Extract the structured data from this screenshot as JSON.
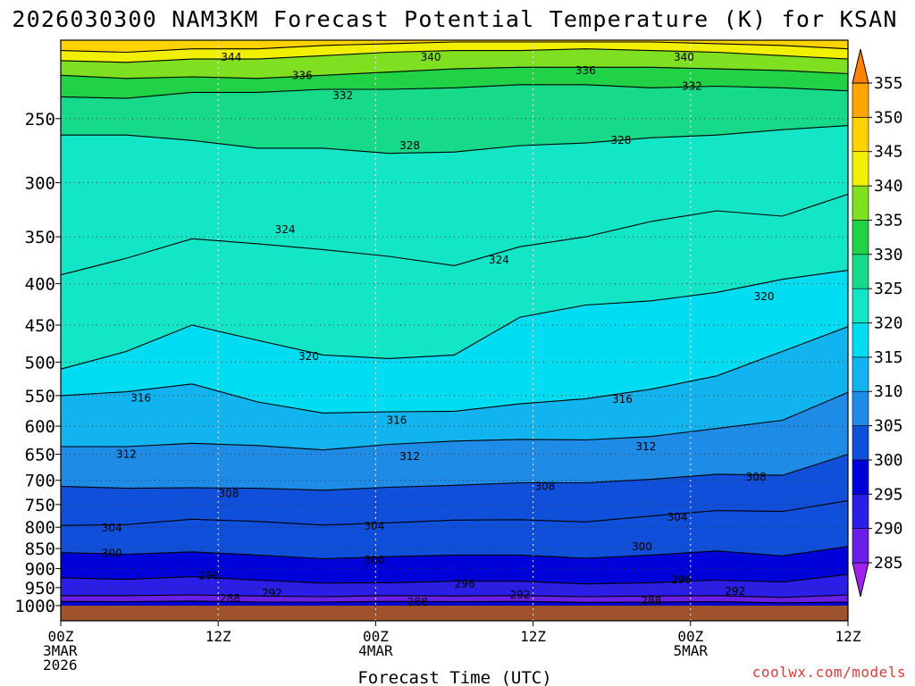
{
  "chart_data": {
    "type": "heatmap",
    "title": "2026030300 NAM3KM Forecast Potential Temperature (K) for KSAN",
    "xlabel": "Forecast Time (UTC)",
    "ylabel": "",
    "watermark": "coolwx.com/models",
    "x_ticks": [
      {
        "hour": 0,
        "lines": [
          "00Z",
          "3MAR",
          "2026"
        ]
      },
      {
        "hour": 12,
        "lines": [
          "12Z"
        ]
      },
      {
        "hour": 24,
        "lines": [
          "00Z",
          "4MAR"
        ]
      },
      {
        "hour": 36,
        "lines": [
          "12Z"
        ]
      },
      {
        "hour": 48,
        "lines": [
          "00Z",
          "5MAR"
        ]
      },
      {
        "hour": 60,
        "lines": [
          "12Z"
        ]
      }
    ],
    "xlim": [
      0,
      60
    ],
    "y_ticks": [
      250,
      300,
      350,
      400,
      450,
      500,
      550,
      600,
      650,
      700,
      750,
      800,
      850,
      900,
      950,
      1000
    ],
    "ylim_hpa": [
      200,
      1010
    ],
    "surface_hpa": 1000,
    "colorbar": {
      "levels": [
        285,
        290,
        295,
        300,
        305,
        310,
        315,
        320,
        325,
        330,
        335,
        340,
        345,
        350,
        355
      ],
      "colors": [
        "#a020f0",
        "#6a1fe6",
        "#2b1ee6",
        "#0000d8",
        "#0f4fd9",
        "#1e8be6",
        "#12b4f0",
        "#00dcf2",
        "#13e6c6",
        "#17d98a",
        "#21d246",
        "#7ee020",
        "#f0f000",
        "#ffd200",
        "#ffa500",
        "#ff8200"
      ],
      "extend": "both"
    },
    "isentropes": [
      {
        "value": 288,
        "pressures": [
          988,
          989,
          987,
          990,
          990,
          988,
          989,
          988,
          991,
          990,
          989,
          992,
          990
        ]
      },
      {
        "value": 292,
        "pressures": [
          972,
          972,
          970,
          973,
          975,
          972,
          973,
          972,
          975,
          973,
          972,
          977,
          970
        ]
      },
      {
        "value": 296,
        "pressures": [
          924,
          928,
          921,
          930,
          938,
          937,
          933,
          933,
          940,
          937,
          930,
          935,
          915
        ]
      },
      {
        "value": 300,
        "pressures": [
          860,
          864,
          858,
          866,
          875,
          870,
          866,
          866,
          874,
          866,
          856,
          868,
          845
        ]
      },
      {
        "value": 304,
        "pressures": [
          796,
          794,
          782,
          787,
          795,
          790,
          784,
          783,
          788,
          775,
          763,
          765,
          742
        ]
      },
      {
        "value": 308,
        "pressures": [
          712,
          716,
          715,
          716,
          720,
          714,
          710,
          705,
          705,
          698,
          688,
          690,
          650
        ]
      },
      {
        "value": 312,
        "pressures": [
          636,
          636,
          630,
          634,
          642,
          632,
          626,
          623,
          624,
          618,
          604,
          590,
          545
        ]
      },
      {
        "value": 316,
        "pressures": [
          550,
          544,
          532,
          560,
          578,
          576,
          575,
          563,
          555,
          540,
          520,
          485,
          452
        ]
      },
      {
        "value": 320,
        "pressures": [
          510,
          485,
          450,
          470,
          490,
          495,
          490,
          440,
          425,
          420,
          410,
          395,
          385
        ]
      },
      {
        "value": 324,
        "pressures": [
          390,
          372,
          352,
          357,
          363,
          370,
          380,
          360,
          350,
          335,
          325,
          330,
          310
        ]
      },
      {
        "value": 328,
        "pressures": [
          262,
          262,
          266,
          272,
          272,
          276,
          275,
          270,
          268,
          264,
          262,
          258,
          255
        ]
      },
      {
        "value": 332,
        "pressures": [
          235,
          236,
          232,
          232,
          230,
          230,
          229,
          227,
          227,
          229,
          228,
          229,
          231
        ]
      },
      {
        "value": 336,
        "pressures": [
          221,
          223,
          222,
          223,
          221,
          219,
          217,
          216,
          216,
          216,
          217,
          218,
          220
        ]
      },
      {
        "value": 340,
        "pressures": [
          212,
          213,
          211,
          211,
          209,
          207,
          206,
          206,
          205,
          206,
          207,
          209,
          211
        ]
      },
      {
        "value": 344,
        "pressures": [
          206,
          207,
          205,
          205,
          203,
          202,
          201,
          201,
          201,
          201,
          202,
          203,
          205
        ]
      }
    ],
    "contour_labels": [
      {
        "text": "344",
        "hour": 13.0,
        "p": 210
      },
      {
        "text": "340",
        "hour": 28.2,
        "p": 210
      },
      {
        "text": "340",
        "hour": 47.5,
        "p": 210
      },
      {
        "text": "336",
        "hour": 18.4,
        "p": 221
      },
      {
        "text": "336",
        "hour": 40.0,
        "p": 218
      },
      {
        "text": "332",
        "hour": 21.5,
        "p": 234
      },
      {
        "text": "332",
        "hour": 48.1,
        "p": 228
      },
      {
        "text": "328",
        "hour": 26.6,
        "p": 270
      },
      {
        "text": "328",
        "hour": 42.7,
        "p": 266
      },
      {
        "text": "324",
        "hour": 17.1,
        "p": 343
      },
      {
        "text": "324",
        "hour": 33.4,
        "p": 374
      },
      {
        "text": "320",
        "hour": 18.9,
        "p": 492
      },
      {
        "text": "320",
        "hour": 53.6,
        "p": 415
      },
      {
        "text": "316",
        "hour": 6.1,
        "p": 554
      },
      {
        "text": "316",
        "hour": 25.6,
        "p": 590
      },
      {
        "text": "316",
        "hour": 42.8,
        "p": 556
      },
      {
        "text": "312",
        "hour": 5.0,
        "p": 650
      },
      {
        "text": "312",
        "hour": 26.6,
        "p": 654
      },
      {
        "text": "312",
        "hour": 44.6,
        "p": 636
      },
      {
        "text": "308",
        "hour": 12.8,
        "p": 727
      },
      {
        "text": "308",
        "hour": 36.9,
        "p": 712
      },
      {
        "text": "308",
        "hour": 53.0,
        "p": 693
      },
      {
        "text": "304",
        "hour": 3.9,
        "p": 802
      },
      {
        "text": "304",
        "hour": 23.9,
        "p": 797
      },
      {
        "text": "304",
        "hour": 47.0,
        "p": 777
      },
      {
        "text": "300",
        "hour": 3.9,
        "p": 862
      },
      {
        "text": "300",
        "hour": 23.9,
        "p": 878
      },
      {
        "text": "300",
        "hour": 44.3,
        "p": 846
      },
      {
        "text": "296",
        "hour": 11.3,
        "p": 918
      },
      {
        "text": "296",
        "hour": 30.8,
        "p": 940
      },
      {
        "text": "296",
        "hour": 47.3,
        "p": 929
      },
      {
        "text": "292",
        "hour": 16.1,
        "p": 965
      },
      {
        "text": "292",
        "hour": 35.0,
        "p": 970
      },
      {
        "text": "292",
        "hour": 51.4,
        "p": 960
      },
      {
        "text": "288",
        "hour": 12.9,
        "p": 980
      },
      {
        "text": "288",
        "hour": 27.2,
        "p": 990
      },
      {
        "text": "288",
        "hour": 45.0,
        "p": 986
      }
    ]
  }
}
